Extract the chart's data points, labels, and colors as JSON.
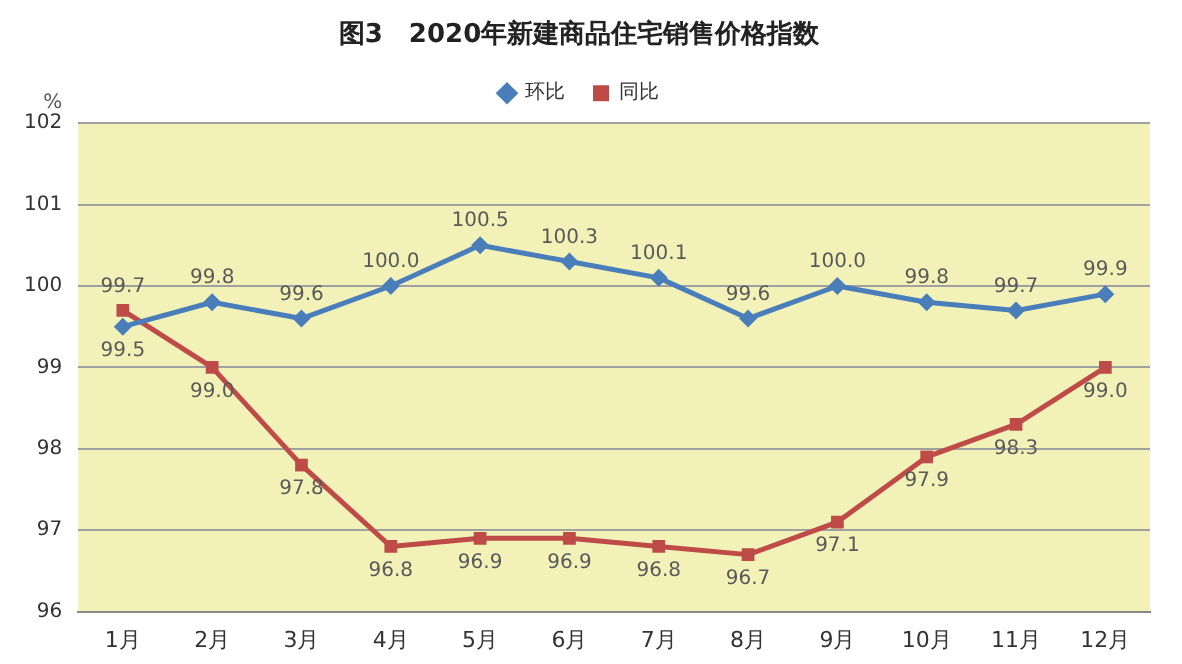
{
  "chart_data": {
    "type": "line",
    "title": "图3　2020年新建商品住宅销售价格指数",
    "ylabel": "%",
    "categories": [
      "1月",
      "2月",
      "3月",
      "4月",
      "5月",
      "6月",
      "7月",
      "8月",
      "9月",
      "10月",
      "11月",
      "12月"
    ],
    "series": [
      {
        "name": "环比",
        "color": "#4a7ebb",
        "marker": "diamond",
        "values": [
          99.5,
          99.8,
          99.6,
          100.0,
          100.5,
          100.3,
          100.1,
          99.6,
          100.0,
          99.8,
          99.7,
          99.9
        ],
        "value_labels": [
          "99.5",
          "99.8",
          "99.6",
          "100.0",
          "100.5",
          "100.3",
          "100.1",
          "99.6",
          "100.0",
          "99.8",
          "99.7",
          "99.9"
        ]
      },
      {
        "name": "同比",
        "color": "#be4b48",
        "marker": "square",
        "values": [
          99.7,
          99.0,
          97.8,
          96.8,
          96.9,
          96.9,
          96.8,
          96.7,
          97.1,
          97.9,
          98.3,
          99.0
        ],
        "value_labels": [
          "99.7",
          "99.0",
          "97.8",
          "96.8",
          "96.9",
          "96.9",
          "96.8",
          "96.7",
          "97.1",
          "97.9",
          "98.3",
          "99.0"
        ]
      }
    ],
    "ylim": [
      96,
      102
    ],
    "yticks": [
      96,
      97,
      98,
      99,
      100,
      101,
      102
    ],
    "grid": "y",
    "legend": "top",
    "line_style": "solid"
  }
}
